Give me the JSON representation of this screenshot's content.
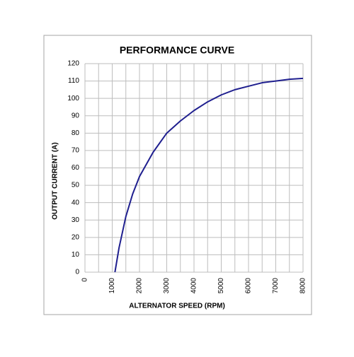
{
  "chart_data": {
    "type": "line",
    "title": "PERFORMANCE CURVE",
    "x_label": "ALTERNATOR SPEED (RPM)",
    "y_label": "OUTPUT CURRENT (A)",
    "x": [
      1100,
      1250,
      1500,
      1750,
      2000,
      2500,
      3000,
      3500,
      4000,
      4500,
      5000,
      5500,
      6000,
      6500,
      7000,
      7500,
      8000
    ],
    "series": [
      {
        "color": "#1f1f8f",
        "values": [
          0,
          14,
          32,
          45,
          55,
          69,
          80,
          87,
          93,
          98,
          102,
          105,
          107,
          109,
          110,
          111,
          111.5
        ]
      }
    ],
    "xlim": [
      0,
      8000
    ],
    "xticks": [
      0,
      1000,
      2000,
      3000,
      4000,
      5000,
      6000,
      7000,
      8000
    ],
    "x_minor_grid": [
      500,
      1500,
      2500,
      3500,
      4500,
      5500,
      6500,
      7500
    ],
    "ylim": [
      0,
      120
    ],
    "yticks": [
      0,
      10,
      20,
      30,
      40,
      50,
      60,
      70,
      80,
      90,
      100,
      110,
      120
    ],
    "grid": true
  }
}
